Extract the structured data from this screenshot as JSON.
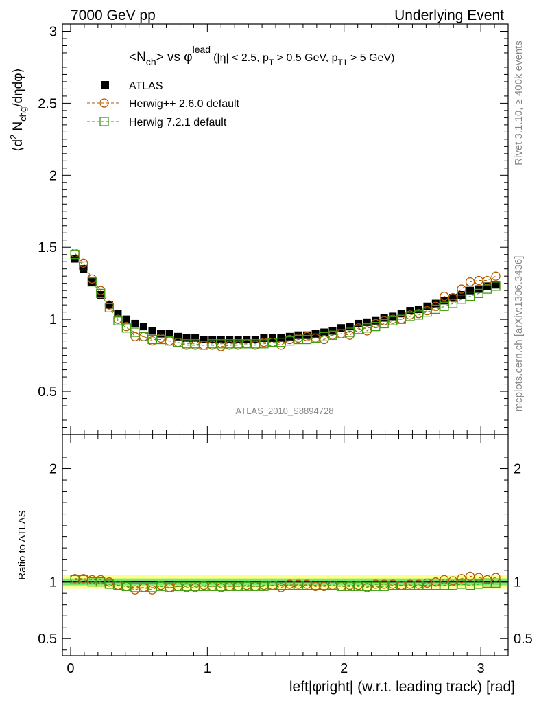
{
  "header": {
    "left": "7000 GeV pp",
    "right": "Underlying Event"
  },
  "plot_title": {
    "main_before": "<N",
    "main_sub": "ch",
    "main_after": "> vs φ",
    "main_sup": "lead",
    "cuts_1": "(|η| < 2.5, p",
    "cuts_1_sub": "T",
    "cuts_2": " > 0.5 GeV, p",
    "cuts_2_sub": "T1",
    "cuts_3": " > 5 GeV)"
  },
  "y_label_top": {
    "a": "⟨d",
    "sup": "2",
    "b": " N",
    "sub": "chg",
    "c": "/dηdφ⟩"
  },
  "y_label_bottom": "Ratio to ATLAS",
  "x_label": "left|φright| (w.r.t. leading track) [rad]",
  "analysis_id": "ATLAS_2010_S8894728",
  "side_text_1": "Rivet 3.1.10, ≥ 400k events",
  "side_text_2": "mcplots.cern.ch [arXiv:1306.3436]",
  "legend": [
    {
      "label": "ATLAS",
      "color": "#000000",
      "marker": "square-filled"
    },
    {
      "label": "Herwig++ 2.6.0 default",
      "color": "#b35900",
      "marker": "circle-open"
    },
    {
      "label": "Herwig 7.2.1 default",
      "color": "#3f9c0f",
      "marker": "square-open"
    }
  ],
  "chart_data": [
    {
      "type": "scatter",
      "panel": "main",
      "xlim": [
        -0.06,
        3.2
      ],
      "ylim": [
        0.2,
        3.05
      ],
      "yticks": [
        "0.5",
        "1",
        "1.5",
        "2",
        "2.5",
        "3"
      ],
      "xticks": [
        "0",
        "1",
        "2",
        "3"
      ],
      "x": [
        0.031,
        0.094,
        0.157,
        0.22,
        0.283,
        0.346,
        0.408,
        0.471,
        0.534,
        0.597,
        0.66,
        0.723,
        0.785,
        0.848,
        0.911,
        0.974,
        1.037,
        1.1,
        1.162,
        1.225,
        1.288,
        1.351,
        1.414,
        1.477,
        1.539,
        1.602,
        1.665,
        1.728,
        1.791,
        1.854,
        1.916,
        1.979,
        2.042,
        2.105,
        2.168,
        2.231,
        2.293,
        2.356,
        2.419,
        2.482,
        2.545,
        2.608,
        2.67,
        2.733,
        2.796,
        2.859,
        2.922,
        2.985,
        3.047,
        3.11
      ],
      "series": [
        {
          "name": "ATLAS",
          "values": [
            1.42,
            1.35,
            1.26,
            1.17,
            1.1,
            1.04,
            1.0,
            0.97,
            0.95,
            0.92,
            0.9,
            0.9,
            0.88,
            0.87,
            0.87,
            0.86,
            0.86,
            0.86,
            0.86,
            0.86,
            0.86,
            0.86,
            0.87,
            0.87,
            0.87,
            0.88,
            0.89,
            0.89,
            0.9,
            0.91,
            0.92,
            0.94,
            0.95,
            0.97,
            0.98,
            0.99,
            1.01,
            1.02,
            1.04,
            1.06,
            1.07,
            1.09,
            1.11,
            1.13,
            1.15,
            1.17,
            1.2,
            1.21,
            1.23,
            1.24
          ]
        },
        {
          "name": "Herwig++ 2.6.0 default",
          "values": [
            1.46,
            1.39,
            1.28,
            1.2,
            1.1,
            1.0,
            0.95,
            0.88,
            0.88,
            0.85,
            0.87,
            0.85,
            0.84,
            0.82,
            0.82,
            0.82,
            0.82,
            0.81,
            0.82,
            0.82,
            0.83,
            0.82,
            0.84,
            0.84,
            0.82,
            0.86,
            0.87,
            0.88,
            0.87,
            0.86,
            0.89,
            0.9,
            0.89,
            0.94,
            0.92,
            0.97,
            0.99,
            1.0,
            1.0,
            1.03,
            1.04,
            1.06,
            1.09,
            1.16,
            1.15,
            1.21,
            1.26,
            1.27,
            1.27,
            1.3
          ]
        },
        {
          "name": "Herwig 7.2.1 default",
          "values": [
            1.45,
            1.37,
            1.26,
            1.18,
            1.08,
            0.99,
            0.94,
            0.91,
            0.88,
            0.86,
            0.86,
            0.85,
            0.84,
            0.83,
            0.83,
            0.82,
            0.83,
            0.83,
            0.83,
            0.83,
            0.83,
            0.83,
            0.83,
            0.84,
            0.84,
            0.85,
            0.86,
            0.86,
            0.87,
            0.88,
            0.89,
            0.9,
            0.91,
            0.93,
            0.94,
            0.95,
            0.97,
            0.99,
            1.0,
            1.02,
            1.03,
            1.05,
            1.07,
            1.09,
            1.11,
            1.14,
            1.16,
            1.18,
            1.21,
            1.23
          ]
        }
      ]
    },
    {
      "type": "scatter",
      "panel": "ratio",
      "xlim": [
        -0.06,
        3.2
      ],
      "ylim": [
        0.35,
        2.3
      ],
      "yticks": [
        "0.5",
        "1",
        "2"
      ],
      "band_outer": 0.06,
      "band_inner": 0.03,
      "series": [
        {
          "name": "Herwig++ 2.6.0 default",
          "values": [
            1.03,
            1.03,
            1.02,
            1.02,
            1.0,
            0.97,
            0.96,
            0.93,
            0.95,
            0.93,
            0.97,
            0.95,
            0.96,
            0.95,
            0.95,
            0.97,
            0.96,
            0.95,
            0.96,
            0.96,
            0.97,
            0.96,
            0.97,
            0.97,
            0.95,
            0.98,
            0.98,
            0.98,
            0.96,
            0.96,
            0.97,
            0.96,
            0.97,
            0.97,
            0.95,
            0.98,
            0.98,
            0.98,
            0.97,
            0.98,
            0.98,
            0.99,
            1.0,
            1.02,
            1.01,
            1.03,
            1.05,
            1.04,
            1.02,
            1.04
          ]
        },
        {
          "name": "Herwig 7.2.1 default",
          "values": [
            1.02,
            1.02,
            1.0,
            1.0,
            0.98,
            0.97,
            0.96,
            0.95,
            0.95,
            0.95,
            0.96,
            0.95,
            0.96,
            0.96,
            0.96,
            0.96,
            0.96,
            0.96,
            0.96,
            0.96,
            0.96,
            0.96,
            0.96,
            0.97,
            0.97,
            0.97,
            0.97,
            0.97,
            0.97,
            0.97,
            0.97,
            0.96,
            0.96,
            0.96,
            0.96,
            0.96,
            0.96,
            0.97,
            0.97,
            0.97,
            0.97,
            0.97,
            0.97,
            0.97,
            0.97,
            0.98,
            0.97,
            0.98,
            0.99,
            0.99
          ]
        }
      ]
    }
  ]
}
